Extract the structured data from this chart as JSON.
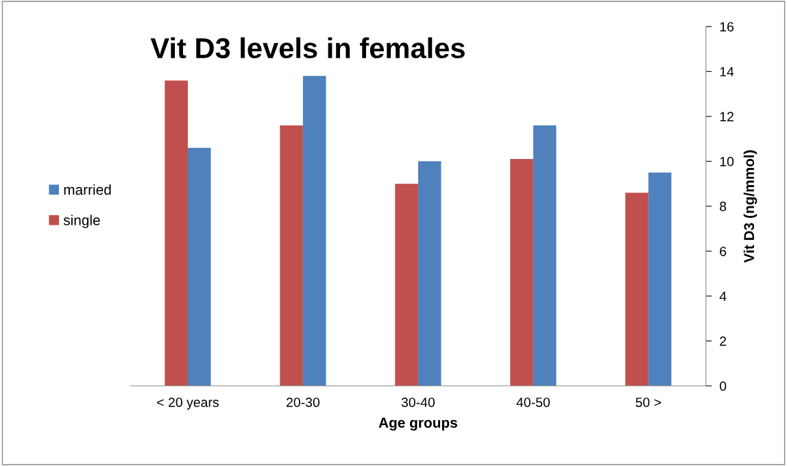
{
  "chart_data": {
    "type": "bar",
    "title": "Vit D3 levels in females",
    "xlabel": "Age groups",
    "ylabel": "Vit D3 (ng/mmol)",
    "categories": [
      "< 20 years",
      "20-30",
      "30-40",
      "40-50",
      "50 >"
    ],
    "series": [
      {
        "name": "single",
        "color": "#c0504d",
        "values": [
          13.6,
          11.6,
          9.0,
          10.1,
          8.6
        ]
      },
      {
        "name": "married",
        "color": "#4f81bd",
        "values": [
          10.6,
          13.8,
          10.0,
          11.6,
          9.5
        ]
      }
    ],
    "ylim": [
      0,
      16
    ],
    "yticks": [
      0,
      2,
      4,
      6,
      8,
      10,
      12,
      14,
      16
    ],
    "grid": false,
    "legend": "left"
  }
}
